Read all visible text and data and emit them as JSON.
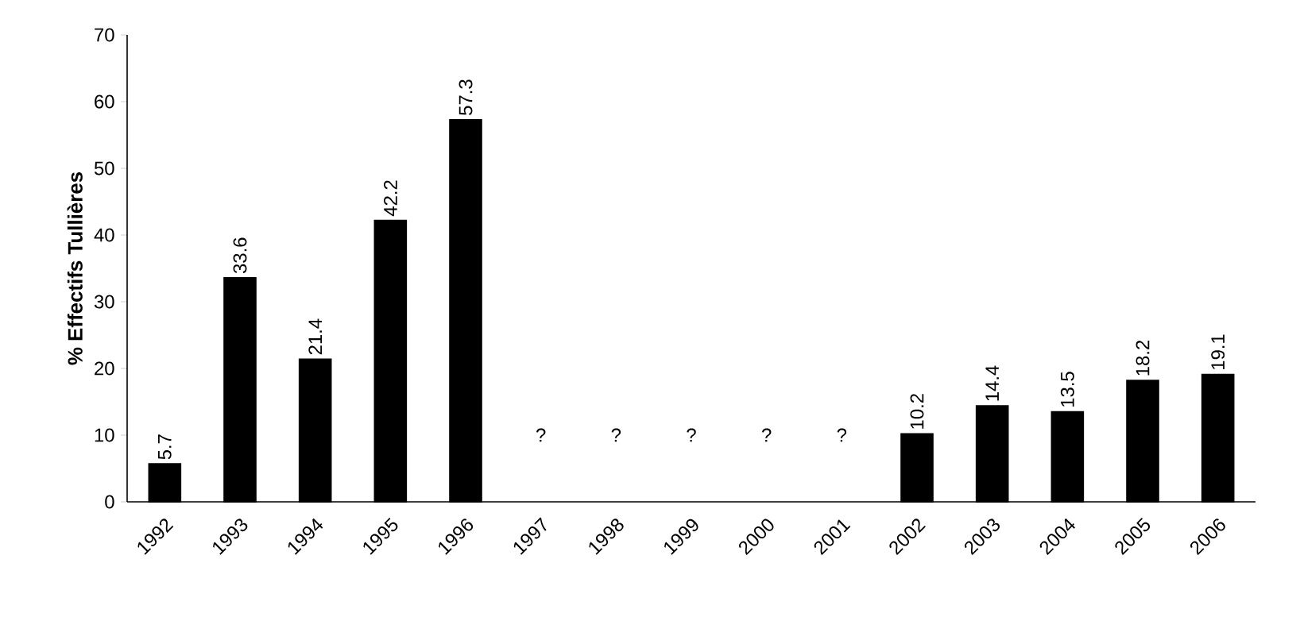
{
  "chart_data": {
    "type": "bar",
    "ylabel": "% Effectifs Tullières",
    "categories": [
      "1992",
      "1993",
      "1994",
      "1995",
      "1996",
      "1997",
      "1998",
      "1999",
      "2000",
      "2001",
      "2002",
      "2003",
      "2004",
      "2005",
      "2006"
    ],
    "values": [
      5.7,
      33.6,
      21.4,
      42.2,
      57.3,
      null,
      null,
      null,
      null,
      null,
      10.2,
      14.4,
      13.5,
      18.2,
      19.1
    ],
    "value_labels": [
      "5.7",
      "33.6",
      "21.4",
      "42.2",
      "57.3",
      null,
      null,
      null,
      null,
      null,
      "10.2",
      "14.4",
      "13.5",
      "18.2",
      "19.1"
    ],
    "color": "#000000",
    "ylim": [
      0,
      70
    ],
    "yticks": [
      0,
      10,
      20,
      30,
      40,
      50,
      60,
      70
    ],
    "grid": false,
    "annotations": [
      "?",
      "?",
      "?",
      "?",
      "?"
    ]
  }
}
